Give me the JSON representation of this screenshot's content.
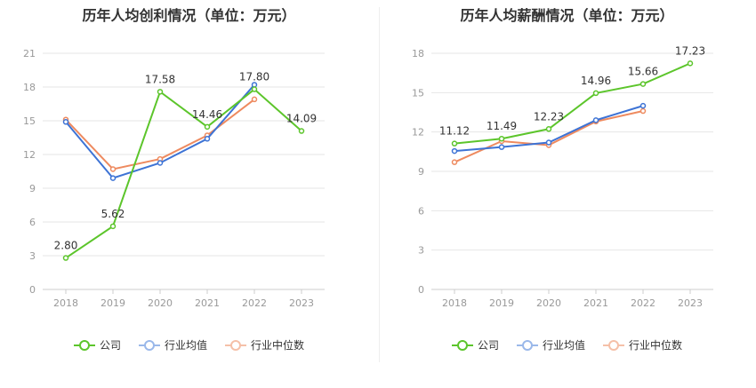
{
  "colors": {
    "company": "#5cc52b",
    "industry_avg": "#3d73d5",
    "industry_median": "#ee8a5f"
  },
  "chart_data": [
    {
      "type": "line",
      "title": "历年人均创利情况（单位：万元）",
      "categories": [
        "2018",
        "2019",
        "2020",
        "2021",
        "2022",
        "2023"
      ],
      "ylim": [
        0,
        21
      ],
      "yticks": [
        "0",
        "3",
        "6",
        "9",
        "12",
        "15",
        "18",
        "21"
      ],
      "series": [
        {
          "key": "company",
          "name": "公司",
          "values": [
            2.8,
            5.62,
            17.58,
            14.46,
            17.8,
            14.09
          ],
          "labels": [
            "2.80",
            "5.62",
            "17.58",
            "14.46",
            "17.80",
            "14.09"
          ]
        },
        {
          "key": "industry_avg",
          "name": "行业均值",
          "values": [
            14.9,
            9.9,
            11.25,
            13.4,
            18.2,
            null
          ]
        },
        {
          "key": "industry_median",
          "name": "行业中位数",
          "values": [
            15.1,
            10.7,
            11.6,
            13.7,
            16.9,
            null
          ]
        }
      ],
      "legend": [
        "公司",
        "行业均值",
        "行业中位数"
      ]
    },
    {
      "type": "line",
      "title": "历年人均薪酬情况（单位：万元）",
      "categories": [
        "2018",
        "2019",
        "2020",
        "2021",
        "2022",
        "2023"
      ],
      "ylim": [
        0,
        18
      ],
      "yticks": [
        "0",
        "3",
        "6",
        "9",
        "12",
        "15",
        "18"
      ],
      "series": [
        {
          "key": "company",
          "name": "公司",
          "values": [
            11.12,
            11.49,
            12.23,
            14.96,
            15.66,
            17.23
          ],
          "labels": [
            "11.12",
            "11.49",
            "12.23",
            "14.96",
            "15.66",
            "17.23"
          ]
        },
        {
          "key": "industry_avg",
          "name": "行业均值",
          "values": [
            10.55,
            10.85,
            11.2,
            12.9,
            14.0,
            null
          ]
        },
        {
          "key": "industry_median",
          "name": "行业中位数",
          "values": [
            9.7,
            11.3,
            11.0,
            12.8,
            13.6,
            null
          ]
        }
      ],
      "legend": [
        "公司",
        "行业均值",
        "行业中位数"
      ]
    }
  ]
}
